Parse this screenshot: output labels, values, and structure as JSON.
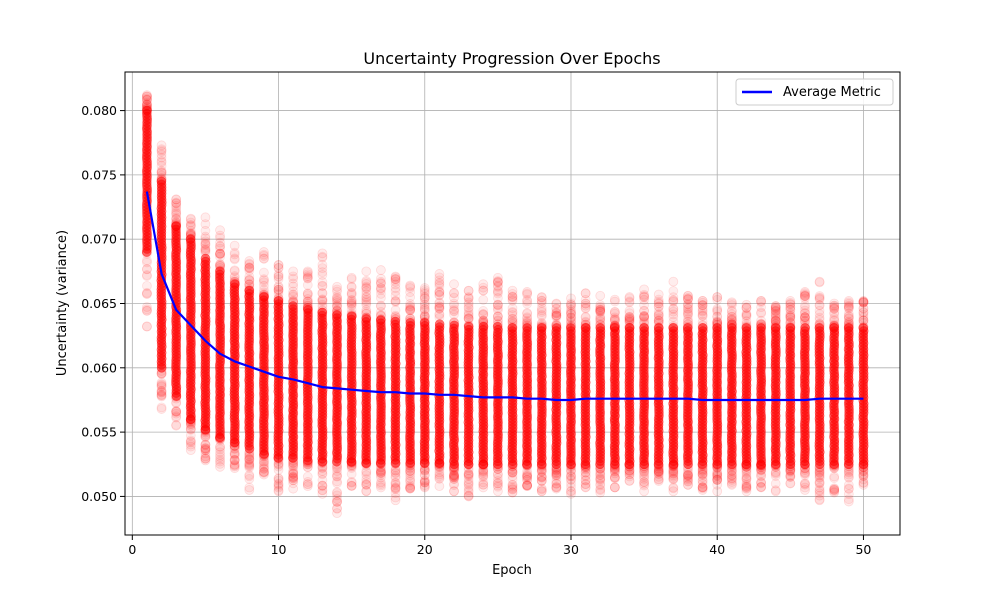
{
  "chart_data": {
    "type": "scatter",
    "title": "Uncertainty Progression Over Epochs",
    "xlabel": "Epoch",
    "ylabel": "Uncertainty (variance)",
    "xlim": [
      -0.5,
      52.5
    ],
    "ylim": [
      0.047,
      0.083
    ],
    "x_ticks": [
      0,
      10,
      20,
      30,
      40,
      50
    ],
    "x_tick_labels": [
      "0",
      "10",
      "20",
      "30",
      "40",
      "50"
    ],
    "y_ticks": [
      0.05,
      0.055,
      0.06,
      0.065,
      0.07,
      0.075,
      0.08
    ],
    "y_tick_labels": [
      "0.050",
      "0.055",
      "0.060",
      "0.065",
      "0.070",
      "0.075",
      "0.080"
    ],
    "grid": true,
    "legend_position": "top-right",
    "scatter_series": {
      "color": "#ff0000",
      "alpha": 0.07,
      "epochs": [
        1,
        2,
        3,
        4,
        5,
        6,
        7,
        8,
        9,
        10,
        11,
        12,
        13,
        14,
        15,
        16,
        17,
        18,
        19,
        20,
        21,
        22,
        23,
        24,
        25,
        26,
        27,
        28,
        29,
        30,
        31,
        32,
        33,
        34,
        35,
        36,
        37,
        38,
        39,
        40,
        41,
        42,
        43,
        44,
        45,
        46,
        47,
        48,
        49,
        50
      ],
      "lower": [
        0.0632,
        0.0568,
        0.0555,
        0.0536,
        0.0528,
        0.0523,
        0.0522,
        0.0505,
        0.0517,
        0.0504,
        0.0506,
        0.0508,
        0.0502,
        0.0487,
        0.0508,
        0.0504,
        0.0507,
        0.0497,
        0.0506,
        0.0507,
        0.0508,
        0.0504,
        0.05,
        0.0507,
        0.0504,
        0.0503,
        0.0508,
        0.0504,
        0.0506,
        0.0502,
        0.0507,
        0.0503,
        0.0507,
        0.0512,
        0.0504,
        0.0512,
        0.0504,
        0.0509,
        0.0505,
        0.0504,
        0.0509,
        0.0504,
        0.0507,
        0.0504,
        0.051,
        0.0505,
        0.0497,
        0.0503,
        0.0496,
        0.0509
      ],
      "upper": [
        0.0812,
        0.0773,
        0.0731,
        0.0716,
        0.0717,
        0.0707,
        0.0695,
        0.0683,
        0.069,
        0.068,
        0.0675,
        0.0675,
        0.0689,
        0.0663,
        0.067,
        0.0675,
        0.0676,
        0.0671,
        0.0664,
        0.0662,
        0.0673,
        0.0665,
        0.066,
        0.0665,
        0.067,
        0.066,
        0.0659,
        0.0655,
        0.065,
        0.0654,
        0.0658,
        0.0656,
        0.0653,
        0.0655,
        0.0661,
        0.0657,
        0.0667,
        0.0656,
        0.0652,
        0.0655,
        0.0651,
        0.0649,
        0.0652,
        0.0648,
        0.0652,
        0.0659,
        0.0667,
        0.065,
        0.0652,
        0.0652
      ],
      "core_lower": [
        0.069,
        0.06,
        0.0578,
        0.056,
        0.0552,
        0.0546,
        0.0542,
        0.0537,
        0.0533,
        0.053,
        0.053,
        0.0528,
        0.0527,
        0.0527,
        0.0527,
        0.0526,
        0.0526,
        0.0526,
        0.0526,
        0.0526,
        0.0526,
        0.0525,
        0.0525,
        0.0525,
        0.0525,
        0.0525,
        0.0525,
        0.0525,
        0.0525,
        0.0525,
        0.0525,
        0.0525,
        0.0525,
        0.0525,
        0.0525,
        0.0525,
        0.0525,
        0.0525,
        0.0525,
        0.0525,
        0.0525,
        0.0525,
        0.0525,
        0.0525,
        0.0525,
        0.0525,
        0.0525,
        0.0525,
        0.0525,
        0.0525
      ],
      "core_upper": [
        0.08,
        0.0745,
        0.071,
        0.07,
        0.0685,
        0.0675,
        0.0665,
        0.066,
        0.0655,
        0.0652,
        0.0648,
        0.0645,
        0.0643,
        0.0641,
        0.064,
        0.0638,
        0.0637,
        0.0636,
        0.0635,
        0.0635,
        0.0634,
        0.0633,
        0.0632,
        0.0632,
        0.0632,
        0.0631,
        0.0631,
        0.0631,
        0.0631,
        0.0631,
        0.0631,
        0.0631,
        0.0631,
        0.0631,
        0.0631,
        0.0631,
        0.0631,
        0.0631,
        0.0631,
        0.0631,
        0.0631,
        0.0631,
        0.0631,
        0.0631,
        0.0631,
        0.0631,
        0.0631,
        0.0631,
        0.0631,
        0.0631
      ]
    },
    "series": [
      {
        "name": "Average Metric",
        "type": "line",
        "color": "#0000ff",
        "x": [
          1,
          2,
          3,
          4,
          5,
          6,
          7,
          8,
          9,
          10,
          11,
          12,
          13,
          14,
          15,
          16,
          17,
          18,
          19,
          20,
          21,
          22,
          23,
          24,
          25,
          26,
          27,
          28,
          29,
          30,
          31,
          32,
          33,
          34,
          35,
          36,
          37,
          38,
          39,
          40,
          41,
          42,
          43,
          44,
          45,
          46,
          47,
          48,
          49,
          50
        ],
        "values": [
          0.0737,
          0.0673,
          0.0645,
          0.0633,
          0.0621,
          0.0611,
          0.0605,
          0.0601,
          0.0597,
          0.0593,
          0.0591,
          0.0588,
          0.0585,
          0.0584,
          0.0583,
          0.0582,
          0.0581,
          0.0581,
          0.058,
          0.058,
          0.0579,
          0.0579,
          0.0578,
          0.0577,
          0.0577,
          0.0577,
          0.0576,
          0.0576,
          0.0575,
          0.0575,
          0.0576,
          0.0576,
          0.0576,
          0.0576,
          0.0576,
          0.0576,
          0.0576,
          0.0576,
          0.0575,
          0.0575,
          0.0575,
          0.0575,
          0.0575,
          0.0575,
          0.0575,
          0.0575,
          0.0576,
          0.0576,
          0.0576,
          0.0576
        ]
      }
    ]
  }
}
